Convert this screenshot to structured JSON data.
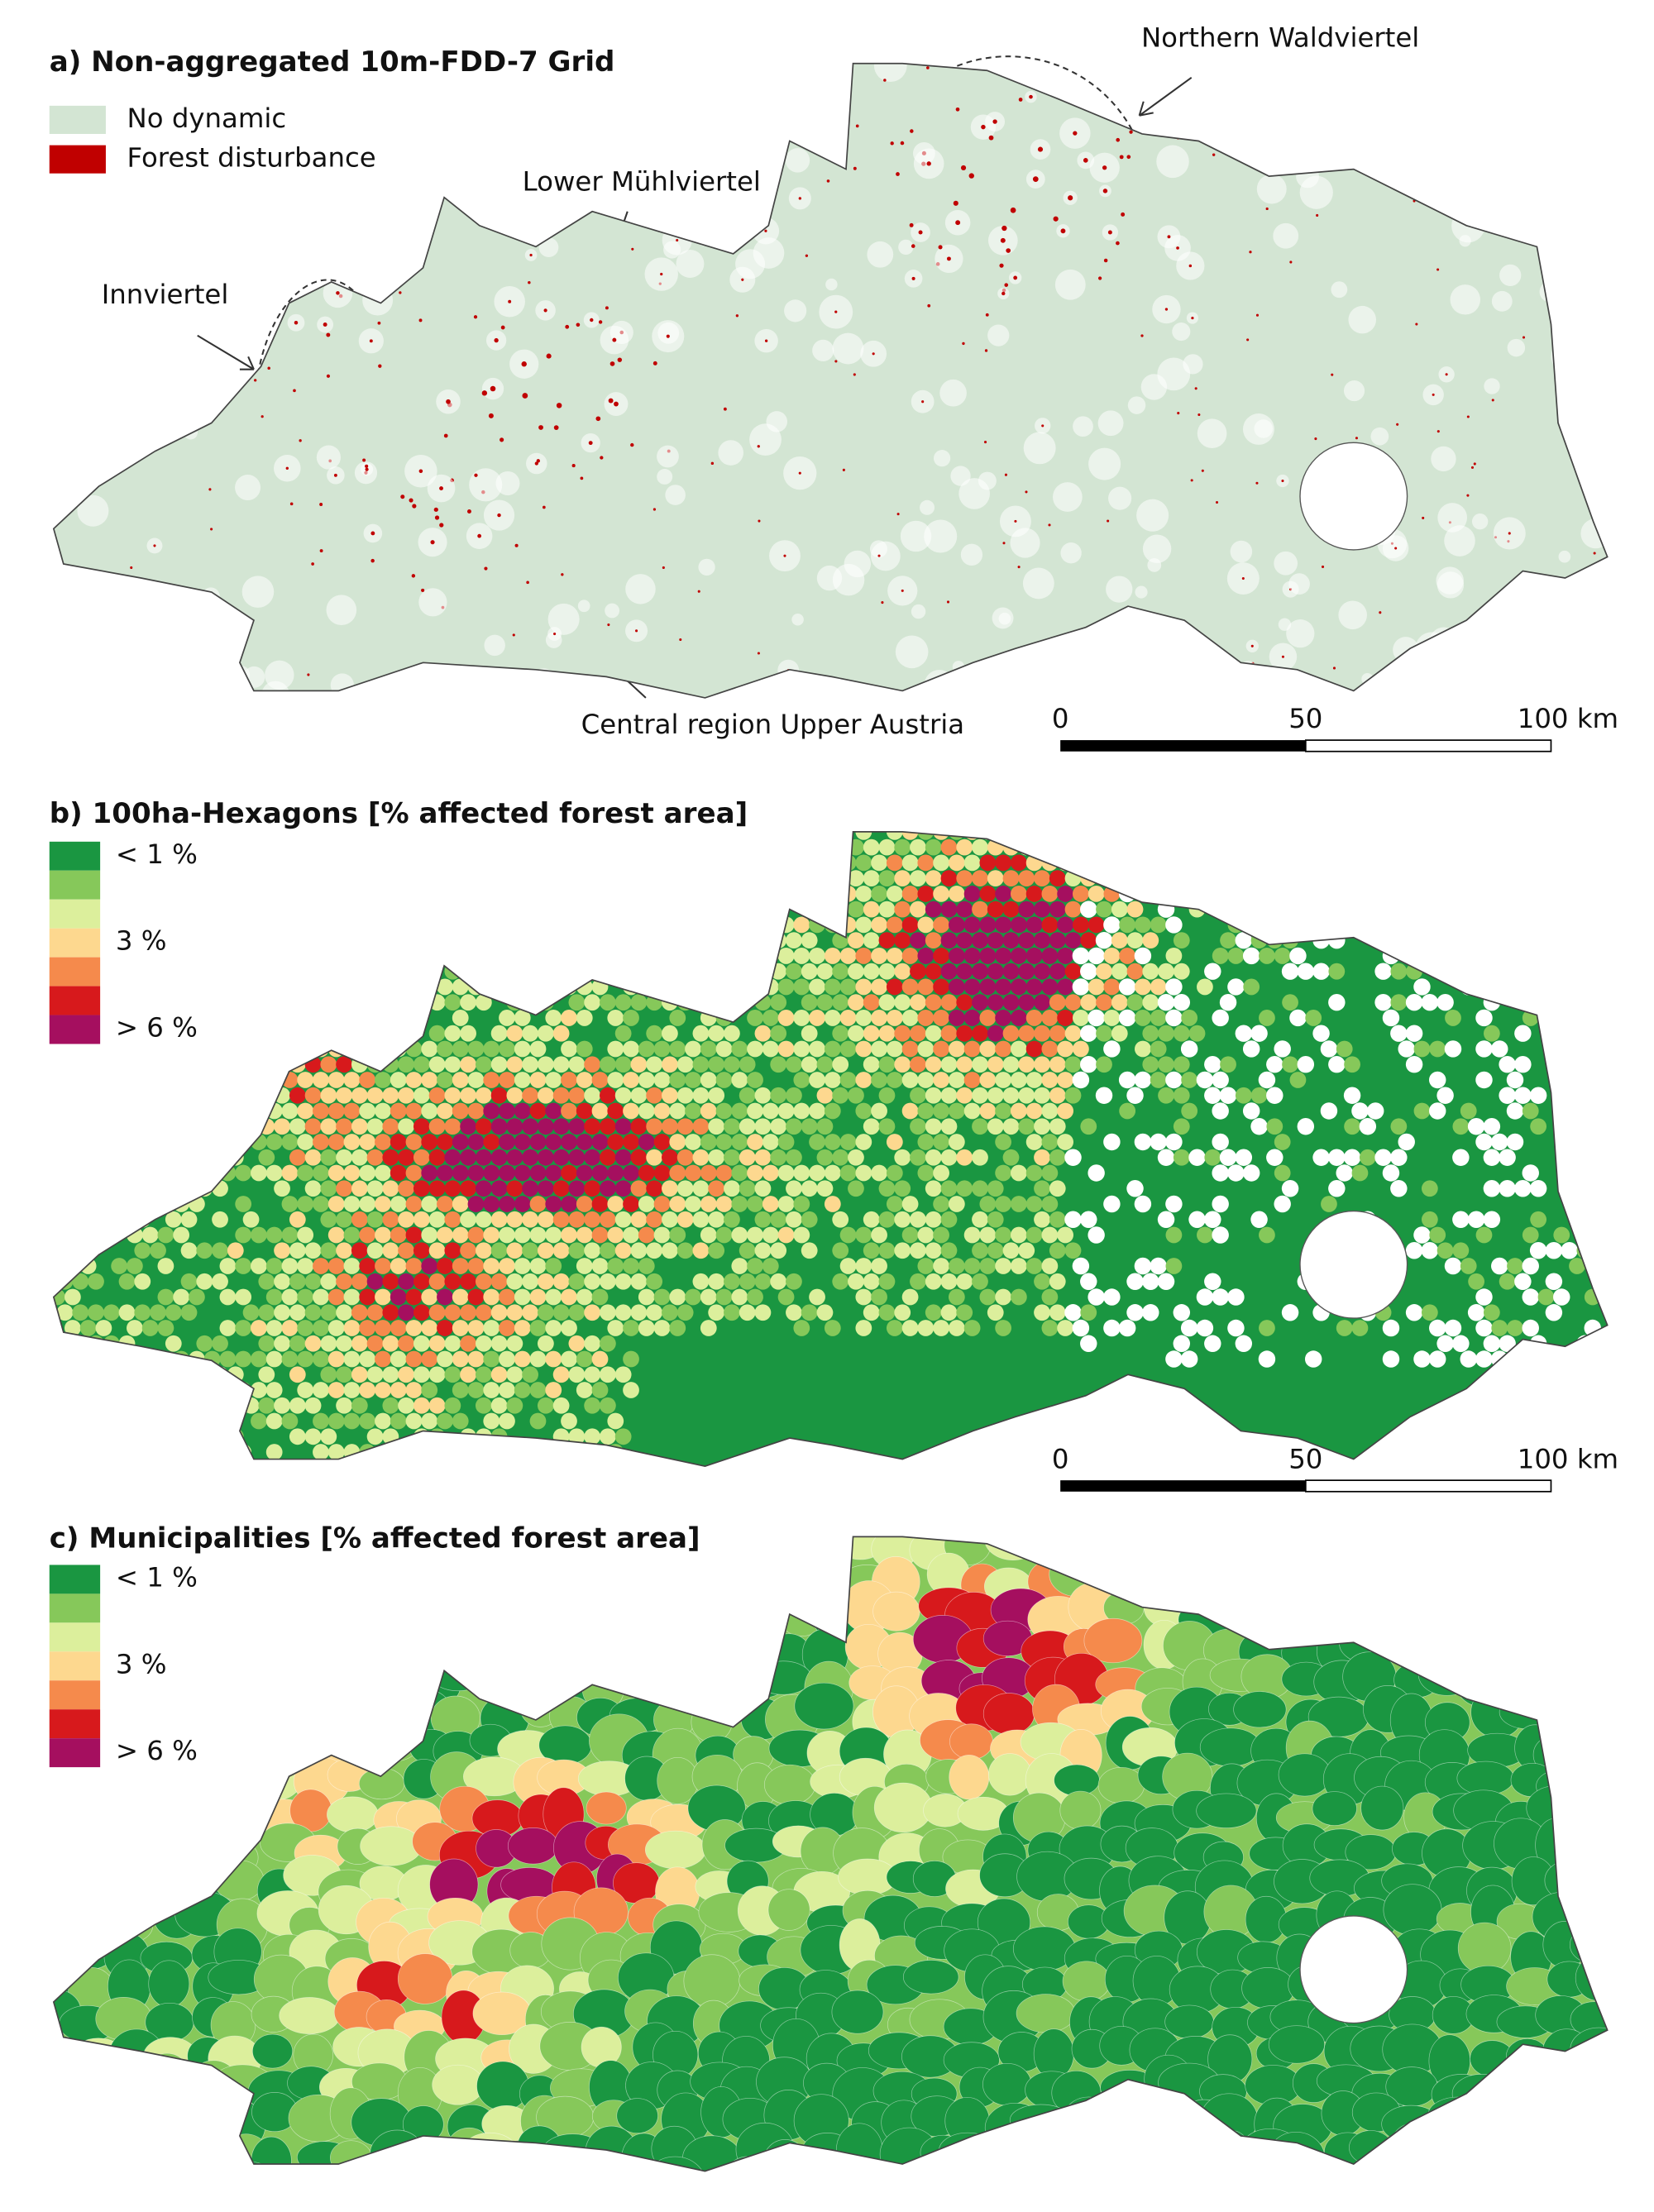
{
  "panels": [
    {
      "title": "a) Non-aggregated 10m-FDD-7 Grid",
      "legend": [
        {
          "label": "No dynamic",
          "color": "#d3e5d3"
        },
        {
          "label": "Forest disturbance",
          "color": "#c00000"
        }
      ],
      "annotations": [
        "Northern Waldviertel",
        "Lower Mühlviertel",
        "Innviertel",
        "Central region Upper Austria"
      ],
      "scale_bar": [
        "0",
        "50",
        "100 km"
      ]
    },
    {
      "title": "b) 100ha-Hexagons [% affected forest area]",
      "legend": [
        {
          "label": "< 1 %",
          "color": "#1a9641"
        },
        {
          "label": null,
          "color": "#86c85a"
        },
        {
          "label": null,
          "color": "#dcef9c"
        },
        {
          "label": "3 %",
          "color": "#fdd88f"
        },
        {
          "label": null,
          "color": "#f58a4c"
        },
        {
          "label": null,
          "color": "#d7191c"
        },
        {
          "label": "> 6 %",
          "color": "#a50f5f"
        }
      ],
      "scale_bar": [
        "0",
        "50",
        "100 km"
      ]
    },
    {
      "title": "c) Municipalities [% affected forest area]",
      "legend": [
        {
          "label": "< 1 %",
          "color": "#1a9641"
        },
        {
          "label": null,
          "color": "#86c85a"
        },
        {
          "label": null,
          "color": "#dcef9c"
        },
        {
          "label": "3 %",
          "color": "#fdd88f"
        },
        {
          "label": null,
          "color": "#f58a4c"
        },
        {
          "label": null,
          "color": "#d7191c"
        },
        {
          "label": "> 6 %",
          "color": "#a50f5f"
        }
      ]
    }
  ]
}
